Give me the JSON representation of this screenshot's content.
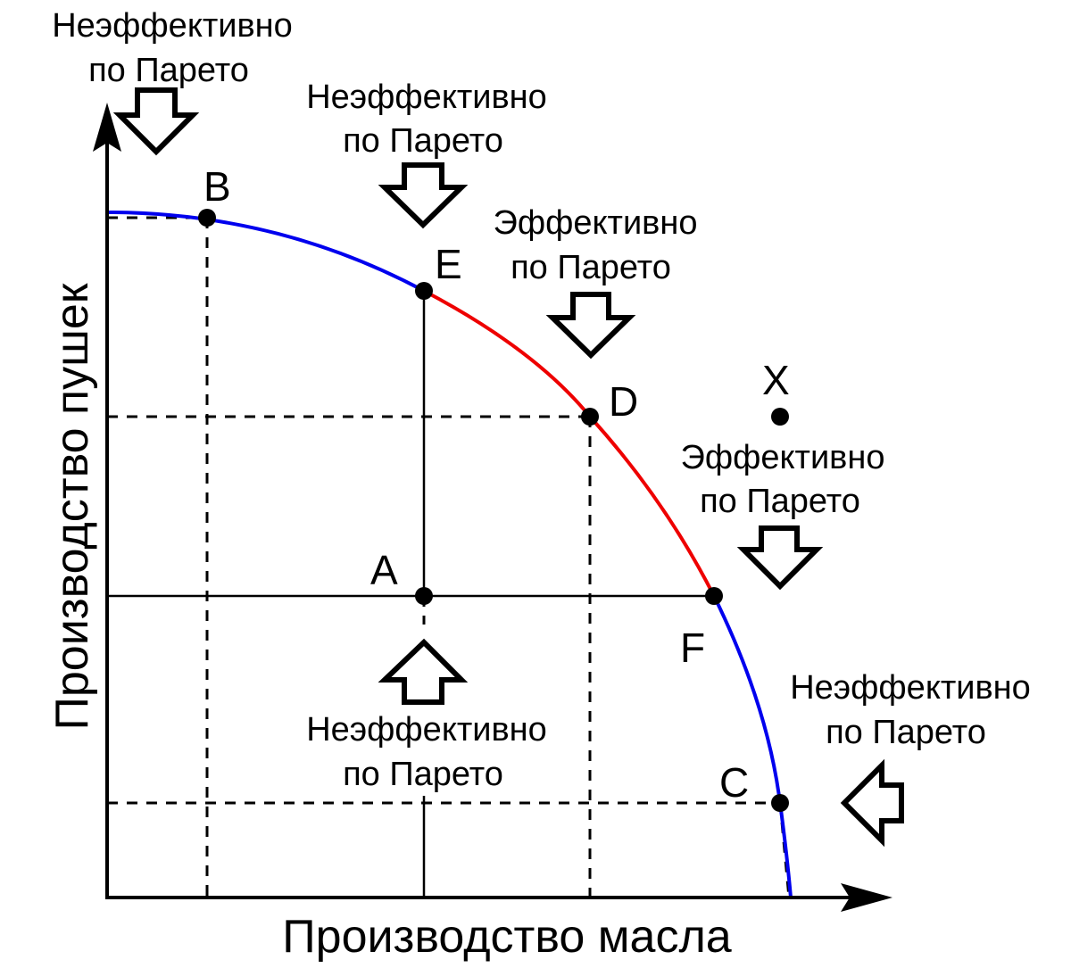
{
  "axes": {
    "x_label": "Производство масла",
    "y_label": "Производство пушек"
  },
  "points": {
    "B": "B",
    "E": "E",
    "D": "D",
    "A": "A",
    "F": "F",
    "C": "C",
    "X": "X"
  },
  "annotations": {
    "inefficient_line1": "Неэффективно",
    "efficient_line1": "Эффективно",
    "line2": "по Парето"
  },
  "colors": {
    "efficient_segment": "#ee0000",
    "inefficient_segment": "#0000ee"
  }
}
